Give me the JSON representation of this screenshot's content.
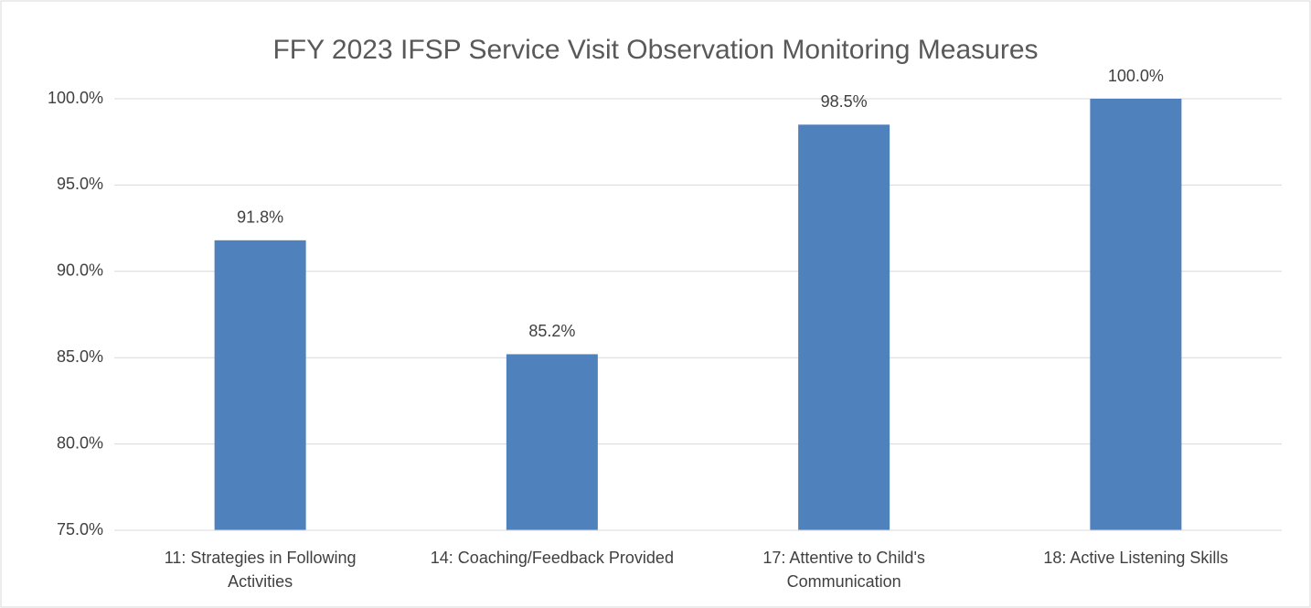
{
  "chart_data": {
    "type": "bar",
    "title": "FFY 2023 IFSP Service Visit Observation Monitoring Measures",
    "categories": [
      "11: Strategies in Following Activities",
      "14: Coaching/Feedback Provided",
      "17: Attentive to Child's Communication",
      "18: Active Listening Skills"
    ],
    "values": [
      91.8,
      85.2,
      98.5,
      100.0
    ],
    "value_labels": [
      "91.8%",
      "85.2%",
      "98.5%",
      "100.0%"
    ],
    "color": "#4f81bd",
    "ylim": [
      75,
      100
    ],
    "yticks": [
      {
        "value": 75,
        "label": "75.0%"
      },
      {
        "value": 80,
        "label": "80.0%"
      },
      {
        "value": 85,
        "label": "85.0%"
      },
      {
        "value": 90,
        "label": "90.0%"
      },
      {
        "value": 95,
        "label": "95.0%"
      },
      {
        "value": 100,
        "label": "100.0%"
      }
    ],
    "grid": true
  }
}
